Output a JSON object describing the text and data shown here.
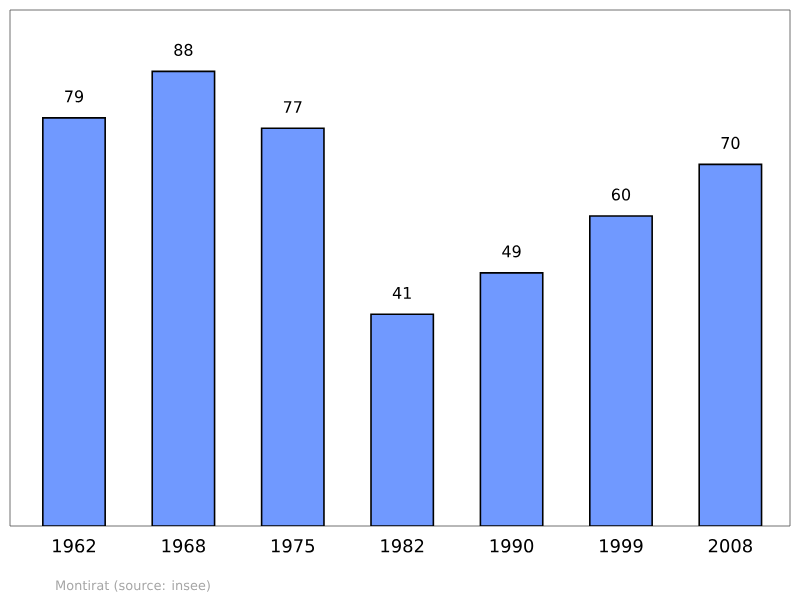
{
  "chart_data": {
    "type": "bar",
    "categories": [
      "1962",
      "1968",
      "1975",
      "1982",
      "1990",
      "1999",
      "2008"
    ],
    "values": [
      79,
      88,
      77,
      41,
      49,
      60,
      70
    ],
    "color": "#7099ff",
    "data_labels": true,
    "annotations": [
      "Montirat   (source: insee)"
    ]
  }
}
